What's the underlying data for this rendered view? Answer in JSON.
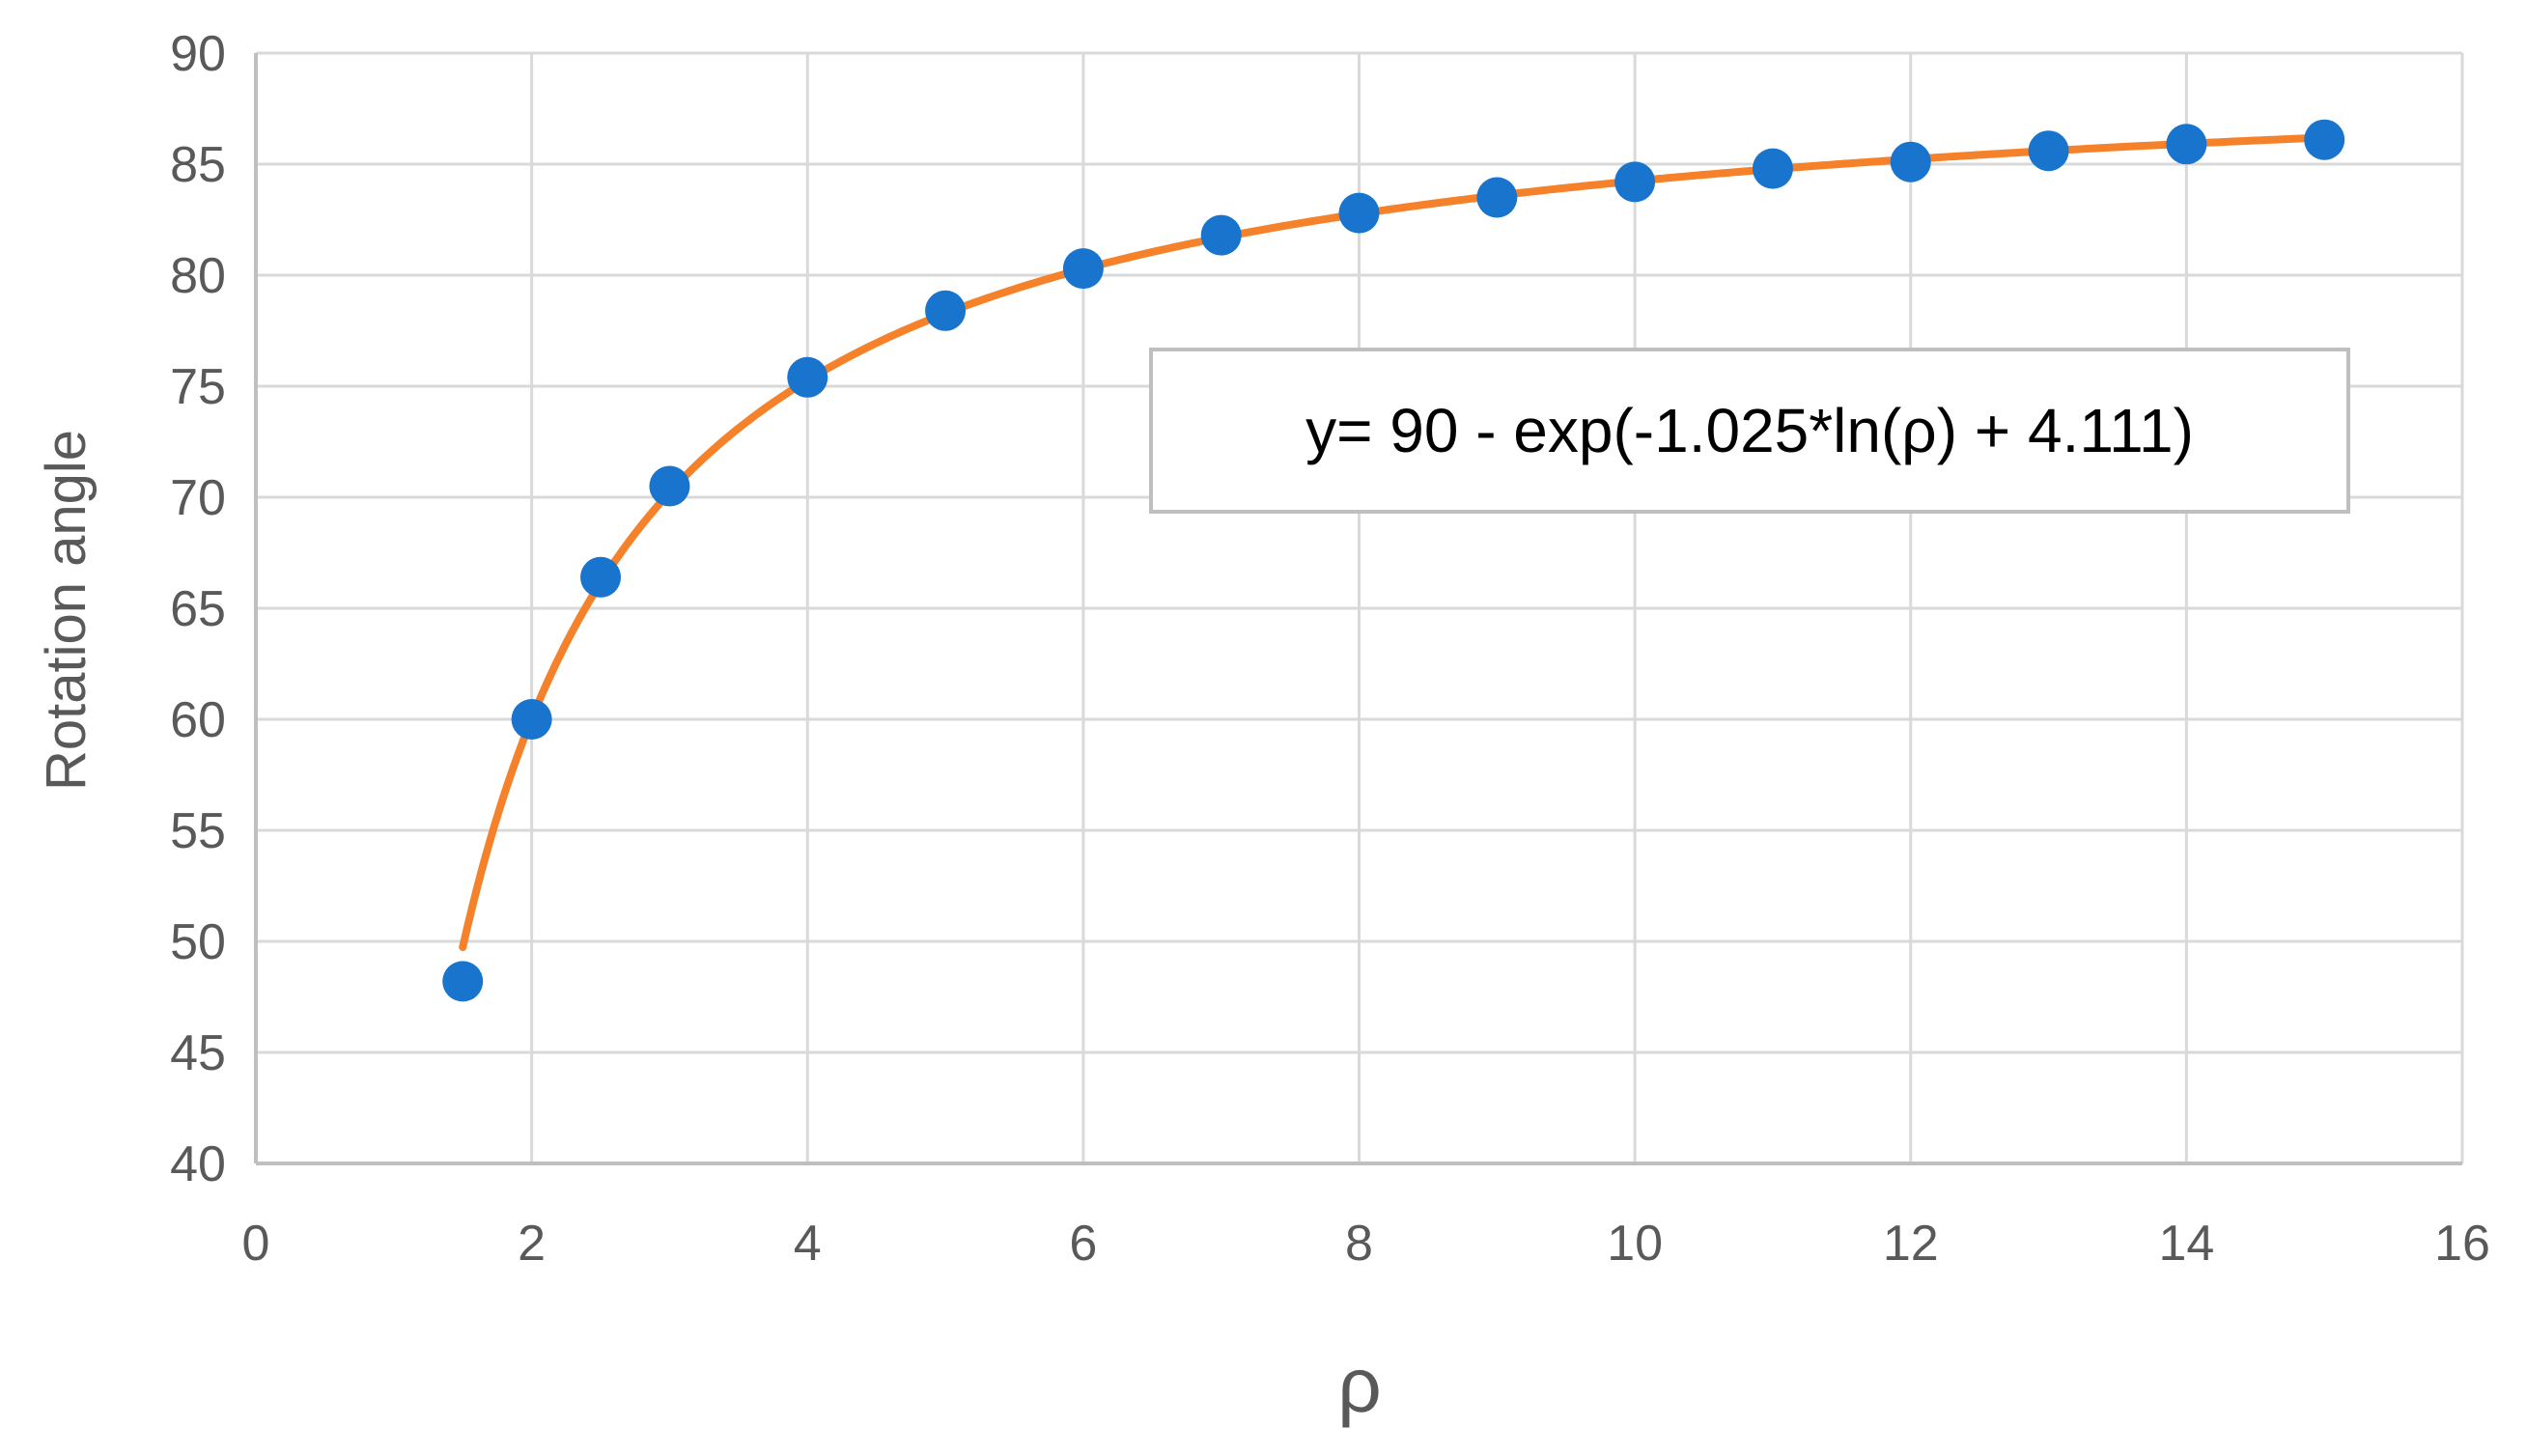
{
  "chart_data": {
    "type": "scatter",
    "title": "",
    "xlabel": "ρ",
    "ylabel": "Rotation angle",
    "xlim": [
      0,
      16
    ],
    "ylim": [
      40,
      90
    ],
    "xticks": [
      0,
      2,
      4,
      6,
      8,
      10,
      12,
      14,
      16
    ],
    "yticks": [
      40,
      45,
      50,
      55,
      60,
      65,
      70,
      75,
      80,
      85,
      90
    ],
    "grid": true,
    "legend": "none",
    "series": [
      {
        "kind": "points",
        "color": "#1874CD",
        "x": [
          1.5,
          2,
          2.5,
          3,
          4,
          5,
          6,
          7,
          8,
          9,
          10,
          11,
          12,
          13,
          14,
          15
        ],
        "y": [
          48.2,
          60.0,
          66.4,
          70.5,
          75.4,
          78.4,
          80.3,
          81.8,
          82.8,
          83.5,
          84.2,
          84.8,
          85.1,
          85.6,
          85.9,
          86.1
        ]
      },
      {
        "kind": "fit-curve",
        "color": "#F5822A",
        "x_range": [
          1.5,
          15
        ],
        "formula": "90 - exp(-1.025*ln(x) + 4.111)"
      }
    ],
    "annotations": [
      {
        "text": "y= 90 - exp(-1.025*ln(ρ) + 4.111)",
        "placement": "upper-right-inside"
      }
    ]
  }
}
